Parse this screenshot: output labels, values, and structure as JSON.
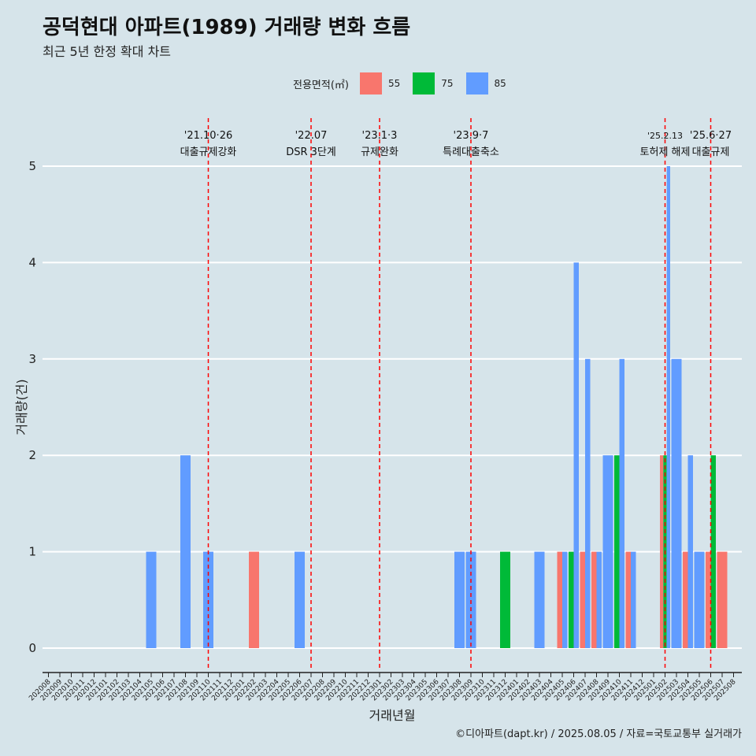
{
  "title": "공덕현대 아파트(1989) 거래량 변화 흐름",
  "subtitle": "최근 5년 한정 확대 차트",
  "caption": "©디아파트(dapt.kr) / 2025.08.05 / 자료=국토교통부 실거래가",
  "legend": {
    "title": "전용면적(㎡)",
    "items": [
      {
        "label": "55",
        "color": "#F8766D"
      },
      {
        "label": "75",
        "color": "#00BA38"
      },
      {
        "label": "85",
        "color": "#619CFF"
      }
    ]
  },
  "chart_data": {
    "type": "bar",
    "xlabel": "거래년월",
    "ylabel": "거래량(건)",
    "ylim": [
      0,
      5
    ],
    "y_ticks": [
      "0",
      "1",
      "2",
      "3",
      "4",
      "5"
    ],
    "grid": true,
    "legend_position": "top",
    "categories": [
      "202008",
      "202009",
      "202010",
      "202011",
      "202012",
      "202101",
      "202102",
      "202103",
      "202104",
      "202105",
      "202106",
      "202107",
      "202108",
      "202109",
      "202110",
      "202111",
      "202112",
      "202201",
      "202202",
      "202203",
      "202204",
      "202205",
      "202206",
      "202207",
      "202208",
      "202209",
      "202210",
      "202211",
      "202212",
      "202301",
      "202302",
      "202303",
      "202304",
      "202305",
      "202306",
      "202307",
      "202308",
      "202309",
      "202310",
      "202311",
      "202312",
      "202401",
      "202402",
      "202403",
      "202404",
      "202405",
      "202406",
      "202407",
      "202408",
      "202409",
      "202410",
      "202411",
      "202412",
      "202501",
      "202502",
      "202503",
      "202504",
      "202505",
      "202506",
      "202507",
      "202508"
    ],
    "series": [
      {
        "name": "55",
        "color": "#F8766D",
        "points": [
          {
            "x": "202202",
            "value": 1
          },
          {
            "x": "202405",
            "value": 1
          },
          {
            "x": "202407",
            "value": 1
          },
          {
            "x": "202408",
            "value": 1
          },
          {
            "x": "202411",
            "value": 1
          },
          {
            "x": "202502",
            "value": 2
          },
          {
            "x": "202504",
            "value": 1
          },
          {
            "x": "202506",
            "value": 1
          },
          {
            "x": "202507",
            "value": 1
          }
        ]
      },
      {
        "name": "75",
        "color": "#00BA38",
        "points": [
          {
            "x": "202312",
            "value": 1
          },
          {
            "x": "202406",
            "value": 1
          },
          {
            "x": "202410",
            "value": 2
          },
          {
            "x": "202502",
            "value": 2
          },
          {
            "x": "202506",
            "value": 2
          }
        ]
      },
      {
        "name": "85",
        "color": "#619CFF",
        "points": [
          {
            "x": "202105",
            "value": 1
          },
          {
            "x": "202108",
            "value": 2
          },
          {
            "x": "202110",
            "value": 1
          },
          {
            "x": "202206",
            "value": 1
          },
          {
            "x": "202308",
            "value": 1
          },
          {
            "x": "202309",
            "value": 1
          },
          {
            "x": "202403",
            "value": 1
          },
          {
            "x": "202405",
            "value": 1
          },
          {
            "x": "202406",
            "value": 4
          },
          {
            "x": "202407",
            "value": 3
          },
          {
            "x": "202408",
            "value": 1
          },
          {
            "x": "202409",
            "value": 2
          },
          {
            "x": "202410",
            "value": 3
          },
          {
            "x": "202411",
            "value": 1
          },
          {
            "x": "202502",
            "value": 5
          },
          {
            "x": "202503",
            "value": 3
          },
          {
            "x": "202504",
            "value": 2
          },
          {
            "x": "202505",
            "value": 1
          }
        ]
      }
    ],
    "annotations": [
      {
        "x": "202110",
        "date": "'21.10·26",
        "text": "대출규제강화"
      },
      {
        "x": "202207",
        "date": "'22.07",
        "text": "DSR 3단계"
      },
      {
        "x": "202301",
        "date": "'23.1·3",
        "text": "규제완화"
      },
      {
        "x": "202309",
        "date": "'23.9·7",
        "text": "특례대출축소"
      },
      {
        "x": "202502",
        "date": "'25.2.13",
        "text": "토허제 해제"
      },
      {
        "x": "202506",
        "date": "'25.6·27",
        "text": "대출규제"
      }
    ],
    "annotation_line_color": "#FF0000"
  }
}
